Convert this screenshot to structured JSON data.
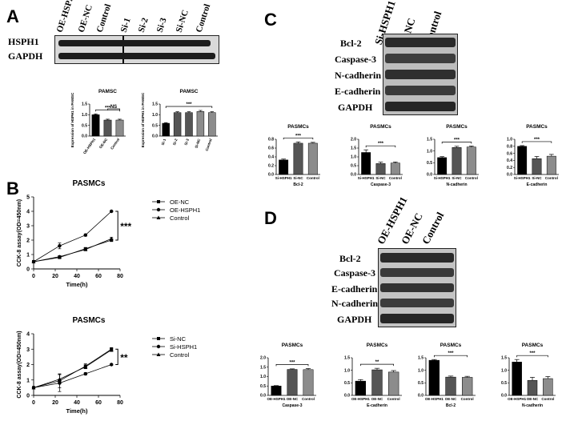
{
  "panels": {
    "A": "A",
    "B": "B",
    "C": "C",
    "D": "D"
  },
  "blot_a": {
    "lanes": [
      "OE-HSPH1",
      "OE-NC",
      "Control",
      "Si-1",
      "Si-2",
      "Si-3",
      "Si-NC",
      "Control"
    ],
    "rows": [
      "HSPH1",
      "GAPDH"
    ]
  },
  "blot_c": {
    "lanes": [
      "Si-HSPH1",
      "Si-NC",
      "Control"
    ],
    "rows": [
      "Bcl-2",
      "Caspase-3",
      "N-cadherin",
      "E-cadherin",
      "GAPDH"
    ]
  },
  "blot_d": {
    "lanes": [
      "OE-HSPH1",
      "OE-NC",
      "Control"
    ],
    "rows": [
      "Bcl-2",
      "Caspase-3",
      "E-cadherin",
      "N-cadherin",
      "GAPDH"
    ]
  },
  "colors": {
    "black": "#000000",
    "dark": "#555555",
    "mid": "#8c8c8c"
  },
  "chart_data": [
    {
      "id": "a1",
      "type": "bar",
      "title": "PAMSC",
      "ylabel": "Expression of HSPH1 in PAMSC",
      "categories": [
        "OE-HSPH1",
        "OE-NC",
        "Control"
      ],
      "values": [
        1.0,
        0.75,
        0.75
      ],
      "errors": [
        0.04,
        0.04,
        0.04
      ],
      "ylim": [
        0,
        1.5
      ],
      "yticks": [
        "0.0",
        "0.5",
        "1.0",
        "1.5"
      ],
      "fills": [
        "#000000",
        "#555555",
        "#8c8c8c"
      ],
      "sig": [
        {
          "from": 0,
          "to": 2,
          "label": "***"
        },
        {
          "from": 1,
          "to": 2,
          "label": "NS"
        }
      ]
    },
    {
      "id": "a2",
      "type": "bar",
      "title": "PAMSC",
      "ylabel": "Expression of HSPH1 in PAMSC",
      "categories": [
        "Si-1",
        "Si-2",
        "Si-3",
        "Si-NC",
        "Control"
      ],
      "values": [
        0.6,
        1.1,
        1.1,
        1.15,
        1.1
      ],
      "errors": [
        0.03,
        0.04,
        0.04,
        0.05,
        0.04
      ],
      "ylim": [
        0,
        1.5
      ],
      "yticks": [
        "0.0",
        "0.5",
        "1.0",
        "1.5"
      ],
      "fills": [
        "#000000",
        "#555555",
        "#555555",
        "#8c8c8c",
        "#8c8c8c"
      ],
      "sig": [
        {
          "from": 0,
          "to": 4,
          "label": "***"
        }
      ]
    },
    {
      "id": "b1",
      "type": "line",
      "title": "PASMCs",
      "xlabel": "Time(h)",
      "ylabel": "CCK-8 assay(OD=450nm)",
      "x": [
        0,
        24,
        48,
        72
      ],
      "xlim": [
        0,
        80
      ],
      "xticks": [
        "0",
        "20",
        "40",
        "60",
        "80"
      ],
      "ylim": [
        0,
        5
      ],
      "yticks": [
        "0",
        "1",
        "2",
        "3",
        "4",
        "5"
      ],
      "series": [
        {
          "name": "OE-NC",
          "values": [
            0.5,
            0.8,
            1.4,
            2.0
          ],
          "errors": [
            0.05,
            0.08,
            0.08,
            0.1
          ],
          "marker": "square"
        },
        {
          "name": "OE-HSPH1",
          "values": [
            0.5,
            1.6,
            2.35,
            4.0
          ],
          "errors": [
            0.05,
            0.2,
            0.08,
            0.05
          ],
          "marker": "circle"
        },
        {
          "name": "Control",
          "values": [
            0.5,
            0.85,
            1.35,
            2.1
          ],
          "errors": [
            0.05,
            0.08,
            0.08,
            0.1
          ],
          "marker": "triangle"
        }
      ],
      "sig": "***"
    },
    {
      "id": "b2",
      "type": "line",
      "title": "PASMCs",
      "xlabel": "Time(h)",
      "ylabel": "CCK-8 assay(OD=450nm)",
      "x": [
        0,
        24,
        48,
        72
      ],
      "xlim": [
        0,
        80
      ],
      "xticks": [
        "0",
        "20",
        "40",
        "60",
        "80"
      ],
      "ylim": [
        0,
        4
      ],
      "yticks": [
        "0",
        "1",
        "2",
        "3",
        "4"
      ],
      "series": [
        {
          "name": "Si-NC",
          "values": [
            0.5,
            0.95,
            1.9,
            3.0
          ],
          "errors": [
            0.05,
            0.45,
            0.15,
            0.1
          ],
          "marker": "square"
        },
        {
          "name": "Si-HSPH1",
          "values": [
            0.5,
            0.8,
            1.4,
            2.0
          ],
          "errors": [
            0.05,
            0.55,
            0.08,
            0.05
          ],
          "marker": "circle"
        },
        {
          "name": "Control",
          "values": [
            0.5,
            1.05,
            1.85,
            2.95
          ],
          "errors": [
            0.05,
            0.3,
            0.12,
            0.1
          ],
          "marker": "triangle"
        }
      ],
      "sig": "**"
    },
    {
      "id": "c1",
      "type": "bar",
      "title": "PASMCs",
      "xlabel": "Bcl-2",
      "categories": [
        "Si-HSPH1",
        "Si-NC",
        "Control"
      ],
      "values": [
        0.33,
        0.71,
        0.71
      ],
      "errors": [
        0.02,
        0.03,
        0.02
      ],
      "ylim": [
        0,
        0.8
      ],
      "yticks": [
        "0.0",
        "0.2",
        "0.4",
        "0.6",
        "0.8"
      ],
      "fills": [
        "#000000",
        "#555555",
        "#8c8c8c"
      ],
      "sig": [
        {
          "from": 0,
          "to": 2,
          "label": "***"
        }
      ]
    },
    {
      "id": "c2",
      "type": "bar",
      "title": "PASMCs",
      "xlabel": "Caspase-3",
      "categories": [
        "Si-HSPH1",
        "Si-NC",
        "Control"
      ],
      "values": [
        1.25,
        0.62,
        0.65
      ],
      "errors": [
        0.15,
        0.08,
        0.06
      ],
      "ylim": [
        0,
        2.0
      ],
      "yticks": [
        "0.0",
        "0.5",
        "1.0",
        "1.5",
        "2.0"
      ],
      "fills": [
        "#000000",
        "#555555",
        "#8c8c8c"
      ],
      "sig": [
        {
          "from": 0,
          "to": 2,
          "label": "***"
        }
      ]
    },
    {
      "id": "c3",
      "type": "bar",
      "title": "PASMCs",
      "xlabel": "N-cadherin",
      "categories": [
        "Si-HSPH1",
        "Si-NC",
        "Control"
      ],
      "values": [
        0.72,
        1.15,
        1.17
      ],
      "errors": [
        0.04,
        0.05,
        0.04
      ],
      "ylim": [
        0,
        1.5
      ],
      "yticks": [
        "0.0",
        "0.5",
        "1.0",
        "1.5"
      ],
      "fills": [
        "#000000",
        "#555555",
        "#8c8c8c"
      ],
      "sig": [
        {
          "from": 0,
          "to": 2,
          "label": "***"
        }
      ]
    },
    {
      "id": "c4",
      "type": "bar",
      "title": "PASMCs",
      "xlabel": "E-cadherin",
      "categories": [
        "Si-HSPH1",
        "Si-NC",
        "Control"
      ],
      "values": [
        0.8,
        0.45,
        0.52
      ],
      "errors": [
        0.02,
        0.06,
        0.05
      ],
      "ylim": [
        0,
        1.0
      ],
      "yticks": [
        "0.0",
        "0.2",
        "0.4",
        "0.6",
        "0.8",
        "1.0"
      ],
      "fills": [
        "#000000",
        "#555555",
        "#8c8c8c"
      ],
      "sig": [
        {
          "from": 0,
          "to": 2,
          "label": "***"
        }
      ]
    },
    {
      "id": "d1",
      "type": "bar",
      "title": "PASMCs",
      "xlabel": "Caspase-3",
      "categories": [
        "OE-HSPH1",
        "OE-NC",
        "Control"
      ],
      "values": [
        0.5,
        1.38,
        1.37
      ],
      "errors": [
        0.02,
        0.03,
        0.06
      ],
      "ylim": [
        0,
        2.0
      ],
      "yticks": [
        "0.0",
        "0.5",
        "1.0",
        "1.5",
        "2.0"
      ],
      "fills": [
        "#000000",
        "#555555",
        "#8c8c8c"
      ],
      "sig": [
        {
          "from": 0,
          "to": 2,
          "label": "***"
        }
      ]
    },
    {
      "id": "d2",
      "type": "bar",
      "title": "PASMCs",
      "xlabel": "E-cadherin",
      "categories": [
        "OE-HSPH1",
        "OE-NC",
        "Control"
      ],
      "values": [
        0.57,
        1.02,
        0.93
      ],
      "errors": [
        0.06,
        0.06,
        0.06
      ],
      "ylim": [
        0,
        1.5
      ],
      "yticks": [
        "0.0",
        "0.5",
        "1.0",
        "1.5"
      ],
      "fills": [
        "#000000",
        "#555555",
        "#8c8c8c"
      ],
      "sig": [
        {
          "from": 0,
          "to": 2,
          "label": "**"
        }
      ]
    },
    {
      "id": "d3",
      "type": "bar",
      "title": "PASMCs",
      "xlabel": "Bcl-2",
      "categories": [
        "OE-HSPH1",
        "OE-NC",
        "Control"
      ],
      "values": [
        1.4,
        0.73,
        0.72
      ],
      "errors": [
        0.03,
        0.04,
        0.04
      ],
      "ylim": [
        0,
        1.5
      ],
      "yticks": [
        "0.0",
        "0.5",
        "1.0",
        "1.5"
      ],
      "fills": [
        "#000000",
        "#555555",
        "#8c8c8c"
      ],
      "sig": [
        {
          "from": 0,
          "to": 2,
          "label": "***"
        }
      ]
    },
    {
      "id": "d4",
      "type": "bar",
      "title": "PASMCs",
      "xlabel": "N-cadherin",
      "categories": [
        "OE-HSPH1",
        "OE-NC",
        "Control"
      ],
      "values": [
        1.33,
        0.6,
        0.67
      ],
      "errors": [
        0.1,
        0.12,
        0.08
      ],
      "ylim": [
        0,
        1.5
      ],
      "yticks": [
        "0.0",
        "0.5",
        "1.0",
        "1.5"
      ],
      "fills": [
        "#000000",
        "#555555",
        "#8c8c8c"
      ],
      "sig": [
        {
          "from": 0,
          "to": 2,
          "label": "***"
        }
      ]
    }
  ]
}
